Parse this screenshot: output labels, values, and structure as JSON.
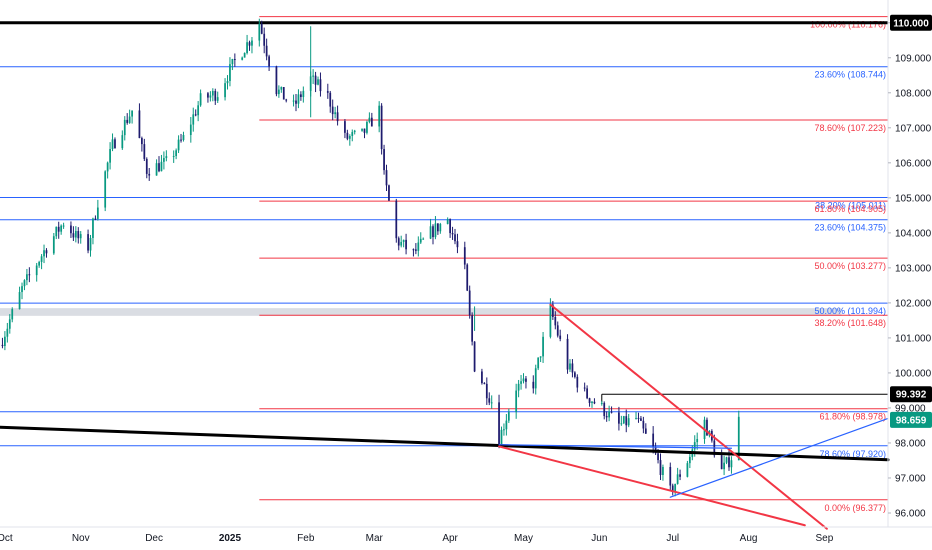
{
  "chart_data": {
    "type": "candlestick",
    "y_axis": {
      "range": [
        95.6,
        110.65
      ],
      "ticks": [
        "96.000",
        "97.000",
        "98.000",
        "99.000",
        "100.000",
        "101.000",
        "102.000",
        "103.000",
        "104.000",
        "105.000",
        "106.000",
        "107.000",
        "108.000",
        "109.000",
        "110.000"
      ],
      "position": "right"
    },
    "x_axis": {
      "ticks": [
        {
          "label": "Oct",
          "date": "2024-10-01",
          "bold": false
        },
        {
          "label": "Nov",
          "date": "2024-11-01",
          "bold": false
        },
        {
          "label": "Dec",
          "date": "2024-12-01",
          "bold": false
        },
        {
          "label": "2025",
          "date": "2025-01-01",
          "bold": true
        },
        {
          "label": "Feb",
          "date": "2025-02-01",
          "bold": false
        },
        {
          "label": "Mar",
          "date": "2025-03-01",
          "bold": false
        },
        {
          "label": "Apr",
          "date": "2025-04-01",
          "bold": false
        },
        {
          "label": "May",
          "date": "2025-05-01",
          "bold": false
        },
        {
          "label": "Jun",
          "date": "2025-06-01",
          "bold": false
        },
        {
          "label": "Jul",
          "date": "2025-07-01",
          "bold": false
        },
        {
          "label": "Aug",
          "date": "2025-08-01",
          "bold": false
        },
        {
          "label": "Sep",
          "date": "2025-09-01",
          "bold": false
        }
      ],
      "range": [
        "2024-09-29",
        "2025-09-27"
      ]
    },
    "price_path": [
      {
        "date": "2024-09-29",
        "price": 100.8
      },
      {
        "date": "2024-10-08",
        "price": 102.4
      },
      {
        "date": "2024-10-18",
        "price": 103.6
      },
      {
        "date": "2024-10-25",
        "price": 104.3
      },
      {
        "date": "2024-10-30",
        "price": 103.9
      },
      {
        "date": "2024-11-04",
        "price": 103.6
      },
      {
        "date": "2024-11-08",
        "price": 104.9
      },
      {
        "date": "2024-11-14",
        "price": 106.5
      },
      {
        "date": "2024-11-22",
        "price": 107.5
      },
      {
        "date": "2024-11-28",
        "price": 105.8
      },
      {
        "date": "2024-12-06",
        "price": 106.0
      },
      {
        "date": "2024-12-13",
        "price": 106.7
      },
      {
        "date": "2024-12-20",
        "price": 107.8
      },
      {
        "date": "2024-12-27",
        "price": 108.0
      },
      {
        "date": "2025-01-03",
        "price": 108.9
      },
      {
        "date": "2025-01-10",
        "price": 109.6
      },
      {
        "date": "2025-01-13",
        "price": 110.0
      },
      {
        "date": "2025-01-20",
        "price": 108.1
      },
      {
        "date": "2025-01-27",
        "price": 107.6
      },
      {
        "date": "2025-02-03",
        "price": 108.4
      },
      {
        "date": "2025-02-10",
        "price": 107.9
      },
      {
        "date": "2025-02-17",
        "price": 106.7
      },
      {
        "date": "2025-02-24",
        "price": 106.8
      },
      {
        "date": "2025-03-03",
        "price": 107.5
      },
      {
        "date": "2025-03-05",
        "price": 105.6
      },
      {
        "date": "2025-03-10",
        "price": 103.8
      },
      {
        "date": "2025-03-17",
        "price": 103.4
      },
      {
        "date": "2025-03-24",
        "price": 104.0
      },
      {
        "date": "2025-03-31",
        "price": 104.4
      },
      {
        "date": "2025-04-07",
        "price": 102.9
      },
      {
        "date": "2025-04-11",
        "price": 100.2
      },
      {
        "date": "2025-04-18",
        "price": 99.2
      },
      {
        "date": "2025-04-21",
        "price": 98.1
      },
      {
        "date": "2025-04-28",
        "price": 99.6
      },
      {
        "date": "2025-05-05",
        "price": 99.7
      },
      {
        "date": "2025-05-12",
        "price": 101.8
      },
      {
        "date": "2025-05-19",
        "price": 100.2
      },
      {
        "date": "2025-05-26",
        "price": 99.4
      },
      {
        "date": "2025-06-02",
        "price": 99.0
      },
      {
        "date": "2025-06-09",
        "price": 98.5
      },
      {
        "date": "2025-06-16",
        "price": 98.7
      },
      {
        "date": "2025-06-23",
        "price": 97.8
      },
      {
        "date": "2025-06-30",
        "price": 96.6
      },
      {
        "date": "2025-07-07",
        "price": 97.5
      },
      {
        "date": "2025-07-14",
        "price": 98.6
      },
      {
        "date": "2025-07-21",
        "price": 97.2
      },
      {
        "date": "2025-07-25",
        "price": 97.6
      },
      {
        "date": "2025-07-28",
        "price": 98.659
      }
    ],
    "spikes": [
      {
        "date": "2025-02-03",
        "high": 109.9,
        "low": 107.3
      },
      {
        "date": "2025-04-11",
        "high": 101.9,
        "low": 101.2
      }
    ],
    "fib_levels": [
      {
        "label": "100.00% (110.176)",
        "value": 110.176,
        "color": "#f23645",
        "start": "2025-01-13"
      },
      {
        "label": "23.60% (108.744)",
        "value": 108.744,
        "color": "#2962ff",
        "start": "2024-09-29"
      },
      {
        "label": "78.60% (107.223)",
        "value": 107.223,
        "color": "#f23645",
        "start": "2025-01-13"
      },
      {
        "label": "38.20% (105.011)",
        "value": 105.011,
        "color": "#2962ff",
        "start": "2024-09-29"
      },
      {
        "label": "61.80% (104.905)",
        "value": 104.905,
        "color": "#f23645",
        "start": "2025-01-13"
      },
      {
        "label": "23.60% (104.375)",
        "value": 104.375,
        "color": "#2962ff",
        "start": "2024-09-29"
      },
      {
        "label": "50.00% (103.277)",
        "value": 103.277,
        "color": "#f23645",
        "start": "2025-01-13"
      },
      {
        "label": "50.00% (101.994)",
        "value": 101.994,
        "color": "#2962ff",
        "start": "2024-09-29"
      },
      {
        "label": "38.20% (101.648)",
        "value": 101.648,
        "color": "#f23645",
        "start": "2025-01-13"
      },
      {
        "label": "61.80% (98.978)",
        "value": 98.978,
        "color": "#f23645",
        "start": "2025-01-13"
      },
      {
        "label": "",
        "value": 98.89,
        "color": "#2962ff",
        "start": "2024-09-29"
      },
      {
        "label": "78.60% (97.920)",
        "value": 97.92,
        "color": "#2962ff",
        "start": "2024-09-29"
      },
      {
        "label": "0.00% (96.377)",
        "value": 96.377,
        "color": "#f23645",
        "start": "2025-01-13"
      }
    ],
    "zone": {
      "from": 101.63,
      "to": 101.85,
      "start": "2024-09-29",
      "end": "2025-09-08",
      "color": "#d1d4dc"
    },
    "resistance_110": {
      "value": 110.0,
      "color": "#000000"
    },
    "level_99392": {
      "value": 99.392,
      "start": "2025-06-02",
      "color": "#000000"
    },
    "trendlines": [
      {
        "name": "long-term-support",
        "color": "#000000",
        "width": 3,
        "from": {
          "date": "2024-09-29",
          "price": 98.45
        },
        "to": {
          "date": "2025-09-27",
          "price": 97.52
        }
      },
      {
        "name": "wedge-upper",
        "color": "#f23645",
        "width": 2,
        "from": {
          "date": "2025-05-12",
          "price": 101.95
        },
        "to": {
          "date": "2025-09-02",
          "price": 95.55
        }
      },
      {
        "name": "wedge-lower",
        "color": "#f23645",
        "width": 2,
        "from": {
          "date": "2025-04-21",
          "price": 97.9
        },
        "to": {
          "date": "2025-08-24",
          "price": 95.65
        }
      },
      {
        "name": "blue-support",
        "color": "#2962ff",
        "width": 1.2,
        "from": {
          "date": "2025-06-30",
          "price": 96.45
        },
        "to": {
          "date": "2025-09-27",
          "price": 98.7
        }
      },
      {
        "name": "blue-base",
        "color": "#2962ff",
        "width": 1.2,
        "from": {
          "date": "2025-04-21",
          "price": 97.95
        },
        "to": {
          "date": "2025-07-25",
          "price": 97.85
        }
      }
    ],
    "price_badges": [
      {
        "value": "110.000",
        "price": 110.0,
        "bg": "#000000"
      },
      {
        "value": "99.392",
        "price": 99.392,
        "bg": "#000000"
      },
      {
        "value": "98.659",
        "price": 98.659,
        "bg": "#089981"
      }
    ],
    "colors": {
      "up": "#089981",
      "down": "#1e1b6e",
      "background": "#ffffff"
    }
  }
}
